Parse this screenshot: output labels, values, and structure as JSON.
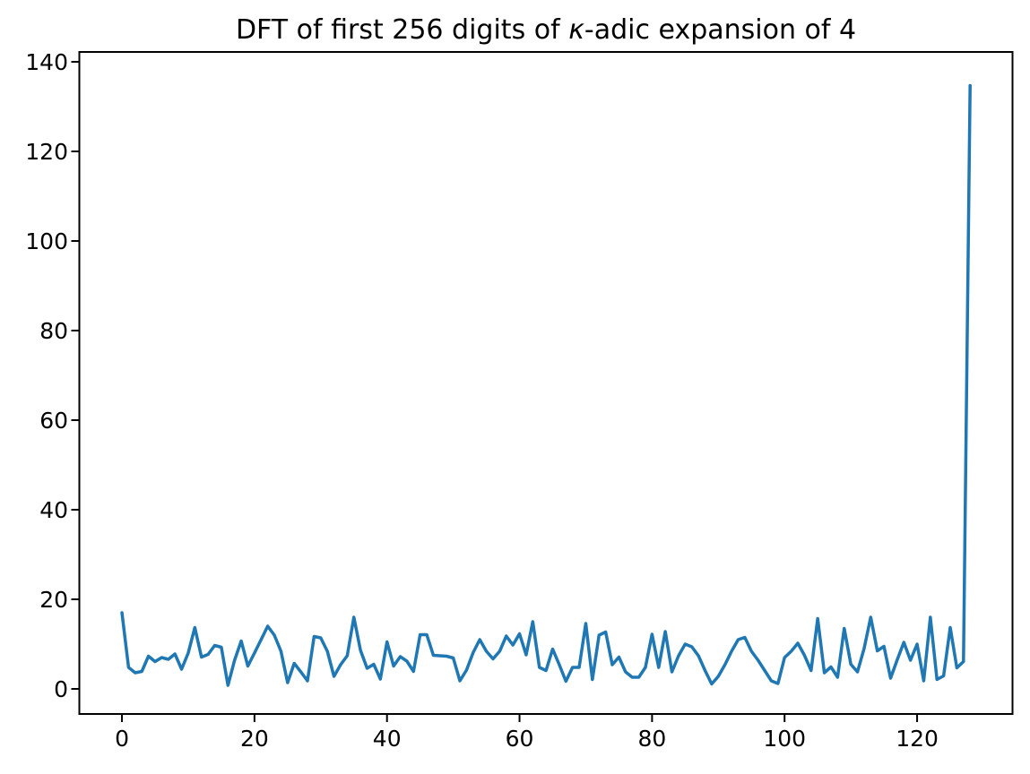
{
  "figure": {
    "background": "#ffffff",
    "title": {
      "prefix": "DFT of first 256 digits of ",
      "kappa": "κ",
      "suffix": "-adic expansion of 4"
    }
  },
  "chart_data": {
    "type": "line",
    "title": "DFT of first 256 digits of κ-adic expansion of 4",
    "xlabel": "",
    "ylabel": "",
    "legend": null,
    "grid": false,
    "line_color": "#1f77b4",
    "axis_color": "#000000",
    "x_ticks": [
      0,
      20,
      40,
      60,
      80,
      100,
      120
    ],
    "y_ticks": [
      0,
      20,
      40,
      60,
      80,
      100,
      120,
      140
    ],
    "xlim": [
      -6.43,
      134.4
    ],
    "ylim": [
      -5.6,
      142.2
    ],
    "x": [
      0,
      1,
      2,
      3,
      4,
      5,
      6,
      7,
      8,
      9,
      10,
      11,
      12,
      13,
      14,
      15,
      16,
      17,
      18,
      19,
      20,
      21,
      22,
      23,
      24,
      25,
      26,
      27,
      28,
      29,
      30,
      31,
      32,
      33,
      34,
      35,
      36,
      37,
      38,
      39,
      40,
      41,
      42,
      43,
      44,
      45,
      46,
      47,
      48,
      49,
      50,
      51,
      52,
      53,
      54,
      55,
      56,
      57,
      58,
      59,
      60,
      61,
      62,
      63,
      64,
      65,
      66,
      67,
      68,
      69,
      70,
      71,
      72,
      73,
      74,
      75,
      76,
      77,
      78,
      79,
      80,
      81,
      82,
      83,
      84,
      85,
      86,
      87,
      88,
      89,
      90,
      91,
      92,
      93,
      94,
      95,
      96,
      97,
      98,
      99,
      100,
      101,
      102,
      103,
      104,
      105,
      106,
      107,
      108,
      109,
      110,
      111,
      112,
      113,
      114,
      115,
      116,
      117,
      118,
      119,
      120,
      121,
      122,
      123,
      124,
      125,
      126,
      127,
      128
    ],
    "values": [
      17.0,
      4.8,
      3.6,
      3.9,
      7.3,
      6.1,
      7.0,
      6.6,
      7.8,
      4.4,
      8.0,
      13.7,
      7.1,
      7.7,
      9.7,
      9.3,
      0.8,
      6.4,
      10.7,
      5.1,
      8.0,
      11.0,
      14.0,
      12.0,
      8.4,
      1.4,
      5.7,
      3.8,
      1.8,
      11.7,
      11.4,
      8.4,
      2.8,
      5.4,
      7.4,
      16.0,
      8.6,
      4.6,
      5.5,
      2.2,
      10.5,
      5.1,
      7.2,
      6.2,
      3.9,
      12.1,
      12.1,
      7.5,
      7.4,
      7.3,
      6.9,
      1.8,
      4.2,
      8.1,
      11.0,
      8.4,
      6.7,
      8.4,
      11.8,
      9.8,
      12.3,
      7.6,
      15.0,
      4.8,
      4.1,
      8.9,
      5.4,
      1.7,
      4.8,
      4.8,
      14.6,
      2.1,
      12.0,
      12.7,
      5.4,
      7.1,
      3.8,
      2.6,
      2.6,
      4.8,
      12.2,
      4.8,
      12.8,
      3.8,
      7.4,
      10.0,
      9.4,
      7.4,
      4.1,
      1.1,
      2.8,
      5.4,
      8.4,
      11.0,
      11.5,
      8.4,
      6.4,
      4.1,
      1.8,
      1.2,
      7.0,
      8.4,
      10.2,
      7.5,
      4.1,
      15.7,
      3.6,
      4.9,
      2.6,
      13.5,
      5.5,
      3.8,
      9.0,
      16.0,
      8.5,
      9.5,
      2.4,
      6.5,
      10.4,
      6.4,
      10.0,
      1.8,
      16.0,
      2.1,
      2.9,
      13.7,
      4.7,
      6.1,
      134.7
    ]
  }
}
